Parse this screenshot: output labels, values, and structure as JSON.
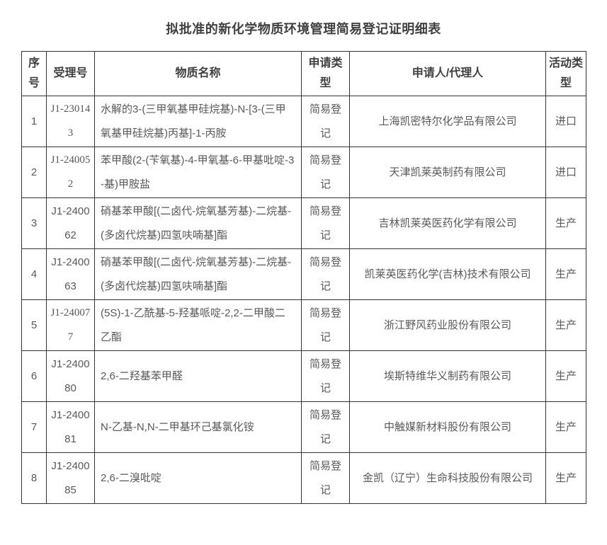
{
  "page": {
    "title": "拟批准的新化学物质环境管理简易登记证明细表"
  },
  "table": {
    "headers": [
      {
        "key": "seq",
        "label": "序号"
      },
      {
        "key": "acceptance_no",
        "label": "受理号"
      },
      {
        "key": "substance",
        "label": "物质名称"
      },
      {
        "key": "application_type",
        "label": "申请类型"
      },
      {
        "key": "applicant",
        "label": "申请人/代理人"
      },
      {
        "key": "activity_type",
        "label": "活动类型"
      }
    ],
    "rows": [
      {
        "seq": "1",
        "acceptance_no": "J1-230143",
        "acceptance_font": "serif",
        "substance": "水解的3-(三甲氧基甲硅烷基)-N-[3-(三甲氧基甲硅烷基)丙基]-1-丙胺",
        "application_type": "简易登记",
        "applicant": "上海凯密特尔化学品有限公司",
        "activity_type": "进口"
      },
      {
        "seq": "2",
        "acceptance_no": "J1-240052",
        "acceptance_font": "serif",
        "substance": "苯甲酸(2-(苄氧基)-4-甲氧基-6-甲基吡啶-3-基)甲胺盐",
        "application_type": "简易登记",
        "applicant": "天津凯莱英制药有限公司",
        "activity_type": "进口"
      },
      {
        "seq": "3",
        "acceptance_no": "J1-240062",
        "acceptance_font": "sans",
        "substance": "硝基苯甲酸[(二卤代-烷氧基芳基)-二烷基-(多卤代烷基)四氢呋喃基]酯",
        "application_type": "简易登记",
        "applicant": "吉林凯莱英医药化学有限公司",
        "activity_type": "生产"
      },
      {
        "seq": "4",
        "acceptance_no": "J1-240063",
        "acceptance_font": "sans",
        "substance": "硝基苯甲酸[(二卤代-烷氧基芳基)-二烷基-(多卤代烷基)四氢呋喃基]酯",
        "application_type": "简易登记",
        "applicant": "凯莱英医药化学(吉林)技术有限公司",
        "activity_type": "生产"
      },
      {
        "seq": "5",
        "acceptance_no": "J1-240077",
        "acceptance_font": "serif",
        "substance": "(5S)-1-乙酰基-5-羟基哌啶-2,2-二甲酸二乙酯",
        "application_type": "简易登记",
        "applicant": "浙江野风药业股份有限公司",
        "activity_type": "生产"
      },
      {
        "seq": "6",
        "acceptance_no": "J1-240080",
        "acceptance_font": "sans",
        "substance": "2,6-二羟基苯甲醛",
        "application_type": "简易登记",
        "applicant": "埃斯特维华义制药有限公司",
        "activity_type": "生产"
      },
      {
        "seq": "7",
        "acceptance_no": "J1-240081",
        "acceptance_font": "sans",
        "substance": "N-乙基-N,N-二甲基环己基氯化铵",
        "application_type": "简易登记",
        "applicant": "中触媒新材料股份有限公司",
        "activity_type": "生产"
      },
      {
        "seq": "8",
        "acceptance_no": "J1-240085",
        "acceptance_font": "sans",
        "substance": "2,6-二溴吡啶",
        "application_type": "简易登记",
        "applicant": "金凯（辽宁）生命科技股份有限公司",
        "activity_type": "生产"
      }
    ]
  },
  "colors": {
    "title_text": "#404040",
    "header_text": "#404040",
    "body_text": "#595959",
    "border": "#333333",
    "background": "#ffffff"
  }
}
